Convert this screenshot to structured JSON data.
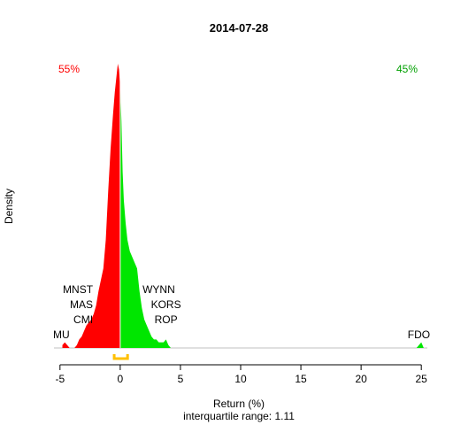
{
  "chart_data": {
    "type": "area",
    "title": "2014-07-28",
    "xlabel": "Return (%)",
    "ylabel": "Density",
    "subtitle": "interquartile range: 1.11",
    "xlim": [
      -5.5,
      25.5
    ],
    "xticks": [
      -5,
      0,
      5,
      10,
      15,
      20,
      25
    ],
    "xtick_labels": [
      "-5",
      "0",
      "5",
      "10",
      "15",
      "20",
      "25"
    ],
    "split_at": 0,
    "left_pct": "55%",
    "right_pct": "45%",
    "colors": {
      "negative": "#ff0000",
      "positive": "#00e600",
      "iqr": "#ffc000",
      "baseline": "#c0c0c0"
    },
    "iqr_range": [
      -0.5,
      0.61
    ],
    "density": {
      "x": [
        -4.8,
        -4.6,
        -4.4,
        -4.2,
        -4.0,
        -3.8,
        -3.6,
        -3.4,
        -3.2,
        -3.0,
        -2.8,
        -2.6,
        -2.4,
        -2.2,
        -2.0,
        -1.8,
        -1.6,
        -1.4,
        -1.2,
        -1.0,
        -0.8,
        -0.6,
        -0.45,
        -0.3,
        -0.2,
        -0.1,
        0.0,
        0.1,
        0.2,
        0.3,
        0.45,
        0.6,
        0.8,
        1.0,
        1.2,
        1.4,
        1.6,
        1.8,
        2.0,
        2.2,
        2.4,
        2.6,
        2.8,
        3.0,
        3.2,
        3.4,
        3.6,
        3.8,
        4.0,
        4.2,
        4.4,
        24.6,
        24.8,
        25.0,
        25.2
      ],
      "y": [
        0.01,
        0.02,
        0.01,
        0.0,
        0.0,
        0.0,
        0.01,
        0.03,
        0.04,
        0.06,
        0.08,
        0.09,
        0.1,
        0.12,
        0.15,
        0.2,
        0.24,
        0.28,
        0.38,
        0.55,
        0.7,
        0.82,
        0.9,
        0.96,
        1.0,
        0.98,
        0.92,
        0.8,
        0.62,
        0.52,
        0.44,
        0.38,
        0.34,
        0.32,
        0.3,
        0.28,
        0.2,
        0.14,
        0.1,
        0.08,
        0.06,
        0.04,
        0.03,
        0.03,
        0.02,
        0.02,
        0.02,
        0.03,
        0.01,
        0.0,
        0.0,
        0.0,
        0.01,
        0.02,
        0.0
      ]
    },
    "annotations_left": [
      {
        "label": "MNST",
        "x": -3.0,
        "level": 4
      },
      {
        "label": "MAS",
        "x": -3.0,
        "level": 3
      },
      {
        "label": "CMI",
        "x": -3.0,
        "level": 2
      },
      {
        "label": "MU",
        "x": -4.2,
        "level": 1
      }
    ],
    "annotations_right": [
      {
        "label": "WYNN",
        "x": 3.2,
        "level": 4
      },
      {
        "label": "KORS",
        "x": 3.8,
        "level": 3
      },
      {
        "label": "ROP",
        "x": 3.8,
        "level": 2
      },
      {
        "label": "FDO",
        "x": 24.8,
        "level": 1
      }
    ]
  }
}
